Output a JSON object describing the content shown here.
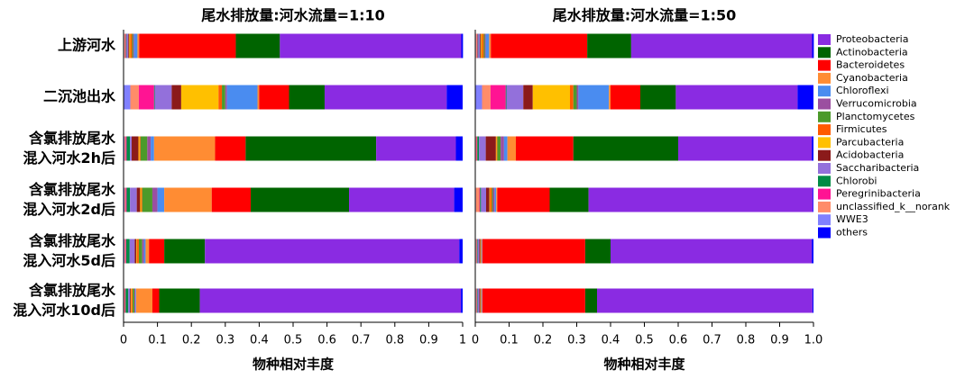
{
  "chart_data": {
    "type": "bar",
    "orientation": "horizontal",
    "stacked": true,
    "categories": [
      "上游河水",
      "二沉池出水",
      "含氯排放尾水\n混入河水2h后",
      "含氯排放尾水\n混入河水2d后",
      "含氯排放尾水\n混入河水5d后",
      "含氯排放尾水\n混入河水10d后"
    ],
    "series": [
      {
        "name": "Proteobacteria",
        "color": "#8a2be2"
      },
      {
        "name": "Actinobacteria",
        "color": "#006400"
      },
      {
        "name": "Bacteroidetes",
        "color": "#ff0000"
      },
      {
        "name": "Cyanobacteria",
        "color": "#ff8c33"
      },
      {
        "name": "Chloroflexi",
        "color": "#4a8cf0"
      },
      {
        "name": "Verrucomicrobia",
        "color": "#9b4fa0"
      },
      {
        "name": "Planctomycetes",
        "color": "#4c9a2a"
      },
      {
        "name": "Firmicutes",
        "color": "#ff5a00"
      },
      {
        "name": "Parcubacteria",
        "color": "#ffc000"
      },
      {
        "name": "Acidobacteria",
        "color": "#8b1a1a"
      },
      {
        "name": "Saccharibacteria",
        "color": "#9370db"
      },
      {
        "name": "Chlorobi",
        "color": "#008b45"
      },
      {
        "name": "Peregrinibacteria",
        "color": "#ff1493"
      },
      {
        "name": "unclassified_k__norank",
        "color": "#ff8c69"
      },
      {
        "name": "WWE3",
        "color": "#8080ff"
      },
      {
        "name": "others",
        "color": "#0000ff"
      }
    ],
    "panels": [
      {
        "title": "尾水排放量:河水流量=1:10",
        "xlabel": "物种相对丰度",
        "xlim": [
          0,
          1
        ],
        "xticks": [
          0,
          0.1,
          0.2,
          0.3,
          0.4,
          0.5,
          0.6,
          0.7,
          0.8,
          0.9,
          1
        ],
        "series": [
          {
            "values": [
              0.535,
              0.36,
              0.235,
              0.31,
              0.75,
              0.77
            ]
          },
          {
            "values": [
              0.13,
              0.105,
              0.385,
              0.29,
              0.12,
              0.12
            ]
          },
          {
            "values": [
              0.285,
              0.088,
              0.09,
              0.115,
              0.045,
              0.02
            ]
          },
          {
            "values": [
              0.005,
              0.005,
              0.18,
              0.14,
              0.01,
              0.048
            ]
          },
          {
            "values": [
              0.01,
              0.09,
              0.01,
              0.02,
              0.005,
              0.002
            ]
          },
          {
            "values": [
              0.003,
              0.005,
              0.01,
              0.015,
              0.005,
              0.003
            ]
          },
          {
            "values": [
              0.003,
              0.01,
              0.02,
              0.03,
              0.01,
              0.005
            ]
          },
          {
            "values": [
              0.005,
              0.01,
              0.003,
              0.003,
              0.005,
              0.003
            ]
          },
          {
            "values": [
              0.003,
              0.11,
              0.003,
              0.003,
              0.002,
              0.002
            ]
          },
          {
            "values": [
              0.003,
              0.028,
              0.02,
              0.01,
              0.005,
              0.003
            ]
          },
          {
            "values": [
              0.005,
              0.05,
              0.005,
              0.02,
              0.015,
              0.005
            ]
          },
          {
            "values": [
              0.002,
              0.002,
              0.01,
              0.01,
              0.01,
              0.008
            ]
          },
          {
            "values": [
              0.002,
              0.045,
              0.003,
              0.003,
              0.002,
              0.002
            ]
          },
          {
            "values": [
              0.003,
              0.025,
              0.003,
              0.003,
              0.003,
              0.002
            ]
          },
          {
            "values": [
              0.002,
              0.02,
              0.003,
              0.003,
              0.003,
              0.002
            ]
          },
          {
            "values": [
              0.005,
              0.047,
              0.02,
              0.025,
              0.01,
              0.005
            ]
          }
        ]
      },
      {
        "title": "尾水排放量:河水流量=1:50",
        "xlabel": "物种相对丰度",
        "xlim": [
          0,
          1
        ],
        "xticks": [
          0,
          0.1,
          0.2,
          0.3,
          0.4,
          0.5,
          0.6,
          0.7,
          0.8,
          0.9,
          {
            "value": 1,
            "label": "1.0"
          }
        ],
        "series": [
          {
            "values": [
              0.535,
              0.36,
              0.395,
              0.663,
              0.595,
              0.637
            ]
          },
          {
            "values": [
              0.13,
              0.105,
              0.31,
              0.115,
              0.075,
              0.035
            ]
          },
          {
            "values": [
              0.285,
              0.088,
              0.17,
              0.155,
              0.304,
              0.304
            ]
          },
          {
            "values": [
              0.005,
              0.005,
              0.025,
              0.003,
              0.001,
              0.001
            ]
          },
          {
            "values": [
              0.01,
              0.09,
              0.01,
              0.005,
              0.001,
              0.001
            ]
          },
          {
            "values": [
              0.003,
              0.005,
              0.01,
              0.005,
              0.001,
              0.001
            ]
          },
          {
            "values": [
              0.003,
              0.01,
              0.01,
              0.003,
              0.001,
              0.001
            ]
          },
          {
            "values": [
              0.005,
              0.01,
              0.002,
              0.005,
              0.001,
              0.001
            ]
          },
          {
            "values": [
              0.003,
              0.11,
              0.002,
              0.002,
              0.001,
              0.001
            ]
          },
          {
            "values": [
              0.003,
              0.028,
              0.03,
              0.01,
              0.003,
              0.003
            ]
          },
          {
            "values": [
              0.005,
              0.05,
              0.02,
              0.015,
              0.005,
              0.005
            ]
          },
          {
            "values": [
              0.002,
              0.002,
              0.005,
              0.003,
              0.002,
              0.002
            ]
          },
          {
            "values": [
              0.002,
              0.045,
              0.002,
              0.002,
              0.001,
              0.001
            ]
          },
          {
            "values": [
              0.003,
              0.025,
              0.002,
              0.01,
              0.002,
              0.002
            ]
          },
          {
            "values": [
              0.002,
              0.02,
              0.002,
              0.002,
              0.002,
              0.002
            ]
          },
          {
            "values": [
              0.005,
              0.047,
              0.005,
              0.002,
              0.005,
              0.003
            ]
          }
        ]
      }
    ]
  }
}
